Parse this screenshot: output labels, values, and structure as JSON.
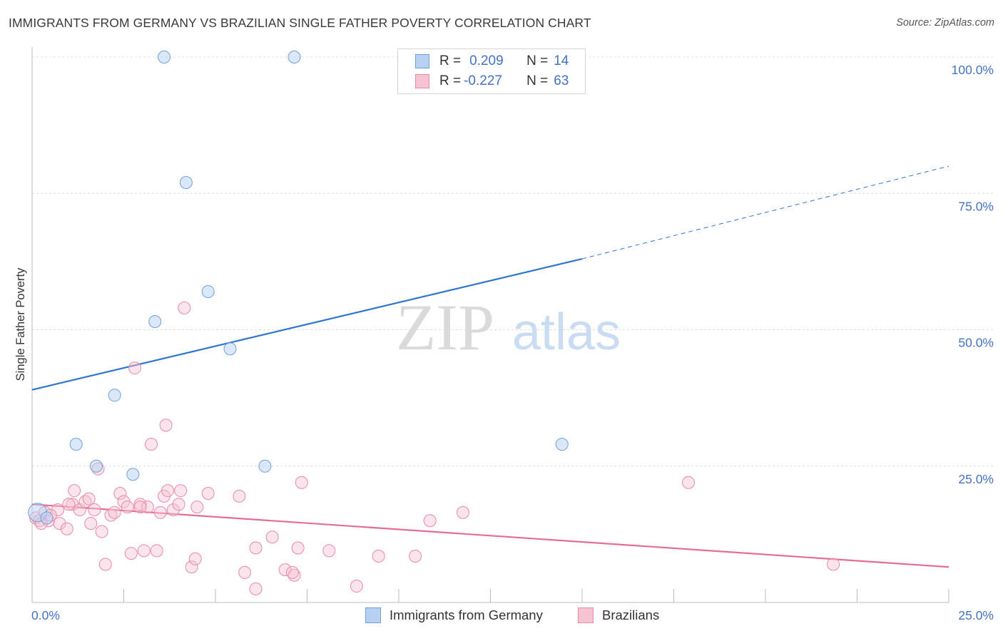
{
  "title": "IMMIGRANTS FROM GERMANY VS BRAZILIAN SINGLE FATHER POVERTY CORRELATION CHART",
  "source": "Source: ZipAtlas.com",
  "watermark": {
    "zip": "ZIP",
    "atlas": "atlas"
  },
  "colors": {
    "blue": "#6fa0dc",
    "blue_fill": "#b8d1f3",
    "blue_line": "#2f74d0",
    "pink": "#e88aa8",
    "pink_fill": "#f6c3d3",
    "pink_line": "#e46c97",
    "axis_text": "#4472c4"
  },
  "legend": {
    "row1": {
      "r_label": "R =",
      "r_value": "0.209",
      "n_label": "N =",
      "n_value": "14"
    },
    "row2": {
      "r_label": "R =",
      "r_value": "-0.227",
      "n_label": "N =",
      "n_value": "63"
    }
  },
  "bottom_legend": {
    "series1": "Immigrants from Germany",
    "series2": "Brazilians"
  },
  "chart_data": {
    "type": "scatter",
    "xlabel": "",
    "ylabel": "Single Father Poverty",
    "xlim": [
      0,
      25
    ],
    "ylim": [
      0,
      100
    ],
    "x_tick_labels": [
      "0.0%",
      "25.0%"
    ],
    "y_ticks": [
      25,
      50,
      75,
      100
    ],
    "y_tick_labels": [
      "25.0%",
      "50.0%",
      "75.0%",
      "100.0%"
    ],
    "grid": true,
    "series": [
      {
        "name": "Immigrants from Germany",
        "color": "#6fa0dc",
        "points": [
          [
            0.15,
            16.5
          ],
          [
            0.4,
            15.5
          ],
          [
            1.2,
            29
          ],
          [
            1.75,
            25
          ],
          [
            2.25,
            38
          ],
          [
            2.75,
            23.5
          ],
          [
            3.35,
            51.5
          ],
          [
            3.6,
            100
          ],
          [
            4.2,
            77
          ],
          [
            4.8,
            57
          ],
          [
            5.4,
            46.5
          ],
          [
            6.35,
            25
          ],
          [
            7.15,
            100
          ],
          [
            14.45,
            29
          ]
        ],
        "trend": {
          "x": [
            0,
            15
          ],
          "y": [
            39,
            63
          ]
        },
        "trend_dashed": {
          "x": [
            15,
            25
          ],
          "y": [
            63,
            80
          ]
        }
      },
      {
        "name": "Brazilians",
        "color": "#e88aa8",
        "points": [
          [
            0.1,
            15.5
          ],
          [
            0.2,
            15
          ],
          [
            0.35,
            16.5
          ],
          [
            0.45,
            15
          ],
          [
            0.7,
            17
          ],
          [
            0.75,
            14.5
          ],
          [
            0.95,
            13.5
          ],
          [
            1.1,
            18
          ],
          [
            1.15,
            20.5
          ],
          [
            1.3,
            17
          ],
          [
            1.45,
            18.5
          ],
          [
            1.6,
            14.5
          ],
          [
            1.7,
            17
          ],
          [
            1.8,
            24.5
          ],
          [
            1.9,
            13
          ],
          [
            2.0,
            7
          ],
          [
            2.15,
            16
          ],
          [
            2.25,
            16.5
          ],
          [
            2.4,
            20
          ],
          [
            2.5,
            18.5
          ],
          [
            2.6,
            17.5
          ],
          [
            2.7,
            9
          ],
          [
            2.8,
            43
          ],
          [
            2.95,
            18
          ],
          [
            3.05,
            9.5
          ],
          [
            3.15,
            17.5
          ],
          [
            3.25,
            29
          ],
          [
            3.4,
            9.5
          ],
          [
            3.5,
            16.5
          ],
          [
            3.6,
            19.5
          ],
          [
            3.65,
            32.5
          ],
          [
            3.7,
            20.5
          ],
          [
            3.85,
            17
          ],
          [
            4.0,
            18
          ],
          [
            4.05,
            20.5
          ],
          [
            4.15,
            54
          ],
          [
            4.35,
            6.5
          ],
          [
            4.45,
            8
          ],
          [
            4.5,
            17.5
          ],
          [
            4.8,
            20
          ],
          [
            5.65,
            19.5
          ],
          [
            5.8,
            5.5
          ],
          [
            6.1,
            10
          ],
          [
            6.55,
            12
          ],
          [
            6.9,
            6
          ],
          [
            7.15,
            5
          ],
          [
            7.25,
            10
          ],
          [
            7.35,
            22
          ],
          [
            8.1,
            9.5
          ],
          [
            8.85,
            3
          ],
          [
            9.45,
            8.5
          ],
          [
            10.45,
            8.5
          ],
          [
            10.85,
            15
          ],
          [
            11.75,
            16.5
          ],
          [
            17.9,
            22
          ],
          [
            21.85,
            7
          ],
          [
            0.25,
            14.5
          ],
          [
            0.5,
            16
          ],
          [
            1.0,
            18
          ],
          [
            2.95,
            17.5
          ],
          [
            1.55,
            19
          ],
          [
            6.1,
            2.5
          ],
          [
            7.1,
            5.5
          ]
        ],
        "trend": {
          "x": [
            0,
            25
          ],
          "y": [
            18,
            6.5
          ]
        }
      }
    ]
  }
}
